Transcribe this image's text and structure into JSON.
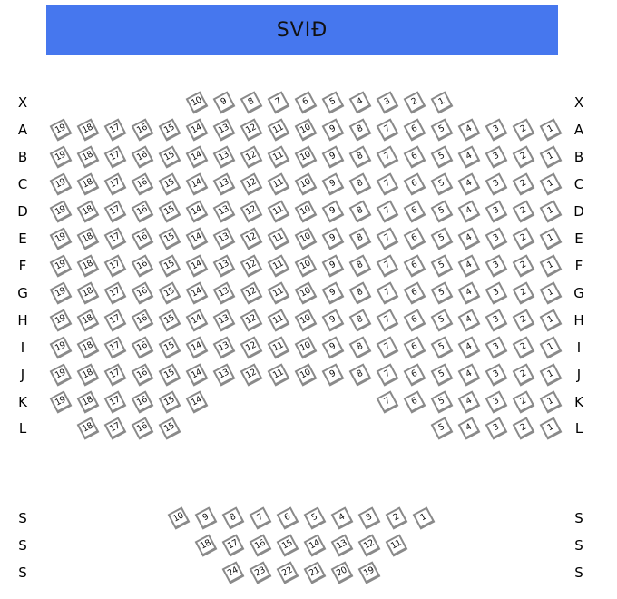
{
  "stage": {
    "label": "SVIÐ",
    "color": "#4677ee"
  },
  "rows": [
    {
      "label": "X",
      "seats": [
        10,
        9,
        8,
        7,
        6,
        5,
        4,
        3,
        2,
        1
      ]
    },
    {
      "label": "A",
      "seats": [
        19,
        18,
        17,
        16,
        15,
        14,
        13,
        12,
        11,
        10,
        9,
        8,
        7,
        6,
        5,
        4,
        3,
        2,
        1
      ]
    },
    {
      "label": "B",
      "seats": [
        19,
        18,
        17,
        16,
        15,
        14,
        13,
        12,
        11,
        10,
        9,
        8,
        7,
        6,
        5,
        4,
        3,
        2,
        1
      ]
    },
    {
      "label": "C",
      "seats": [
        19,
        18,
        17,
        16,
        15,
        14,
        13,
        12,
        11,
        10,
        9,
        8,
        7,
        6,
        5,
        4,
        3,
        2,
        1
      ]
    },
    {
      "label": "D",
      "seats": [
        19,
        18,
        17,
        16,
        15,
        14,
        13,
        12,
        11,
        10,
        9,
        8,
        7,
        6,
        5,
        4,
        3,
        2,
        1
      ]
    },
    {
      "label": "E",
      "seats": [
        19,
        18,
        17,
        16,
        15,
        14,
        13,
        12,
        11,
        10,
        9,
        8,
        7,
        6,
        5,
        4,
        3,
        2,
        1
      ]
    },
    {
      "label": "F",
      "seats": [
        19,
        18,
        17,
        16,
        15,
        14,
        13,
        12,
        11,
        10,
        9,
        8,
        7,
        6,
        5,
        4,
        3,
        2,
        1
      ]
    },
    {
      "label": "G",
      "seats": [
        19,
        18,
        17,
        16,
        15,
        14,
        13,
        12,
        11,
        10,
        9,
        8,
        7,
        6,
        5,
        4,
        3,
        2,
        1
      ]
    },
    {
      "label": "H",
      "seats": [
        19,
        18,
        17,
        16,
        15,
        14,
        13,
        12,
        11,
        10,
        9,
        8,
        7,
        6,
        5,
        4,
        3,
        2,
        1
      ]
    },
    {
      "label": "I",
      "seats": [
        19,
        18,
        17,
        16,
        15,
        14,
        13,
        12,
        11,
        10,
        9,
        8,
        7,
        6,
        5,
        4,
        3,
        2,
        1
      ]
    },
    {
      "label": "J",
      "seats": [
        19,
        18,
        17,
        16,
        15,
        14,
        13,
        12,
        11,
        10,
        9,
        8,
        7,
        6,
        5,
        4,
        3,
        2,
        1
      ]
    },
    {
      "label": "K",
      "seats": [
        19,
        18,
        17,
        16,
        15,
        14,
        7,
        6,
        5,
        4,
        3,
        2,
        1
      ]
    },
    {
      "label": "L",
      "seats": [
        18,
        17,
        16,
        15,
        5,
        4,
        3,
        2,
        1
      ]
    },
    {
      "label": "S",
      "seats": [
        10,
        9,
        8,
        7,
        6,
        5,
        4,
        3,
        2,
        1
      ]
    },
    {
      "label": "S",
      "seats": [
        18,
        17,
        16,
        15,
        14,
        13,
        12,
        11
      ]
    },
    {
      "label": "S",
      "seats": [
        24,
        23,
        22,
        21,
        20,
        19
      ]
    }
  ]
}
